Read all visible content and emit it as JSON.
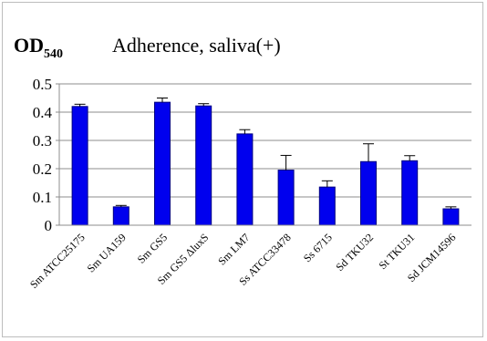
{
  "chart_data": {
    "type": "bar",
    "ylabel_main": "OD",
    "ylabel_sub": "540",
    "title": "Adherence, saliva(+)",
    "categories": [
      "Sm ATCC25175",
      "Sm UA159",
      "Sm GS5",
      "Sm GS5 ΔluxS",
      "Sm LM7",
      "Ss ATCC33478",
      "Ss 6715",
      "Sd TKU32",
      "St TKU31",
      "Sd JCM14596"
    ],
    "values": [
      0.42,
      0.065,
      0.435,
      0.422,
      0.323,
      0.195,
      0.135,
      0.225,
      0.228,
      0.058
    ],
    "errors": [
      0.008,
      0.005,
      0.015,
      0.008,
      0.015,
      0.052,
      0.022,
      0.063,
      0.018,
      0.007
    ],
    "ylim": [
      0,
      0.5
    ],
    "yticks": [
      "0",
      "0.1",
      "0.2",
      "0.3",
      "0.4",
      "0.5"
    ],
    "grid": true,
    "bar_color": "#0000ee",
    "bar_edge_color": "#000080"
  }
}
